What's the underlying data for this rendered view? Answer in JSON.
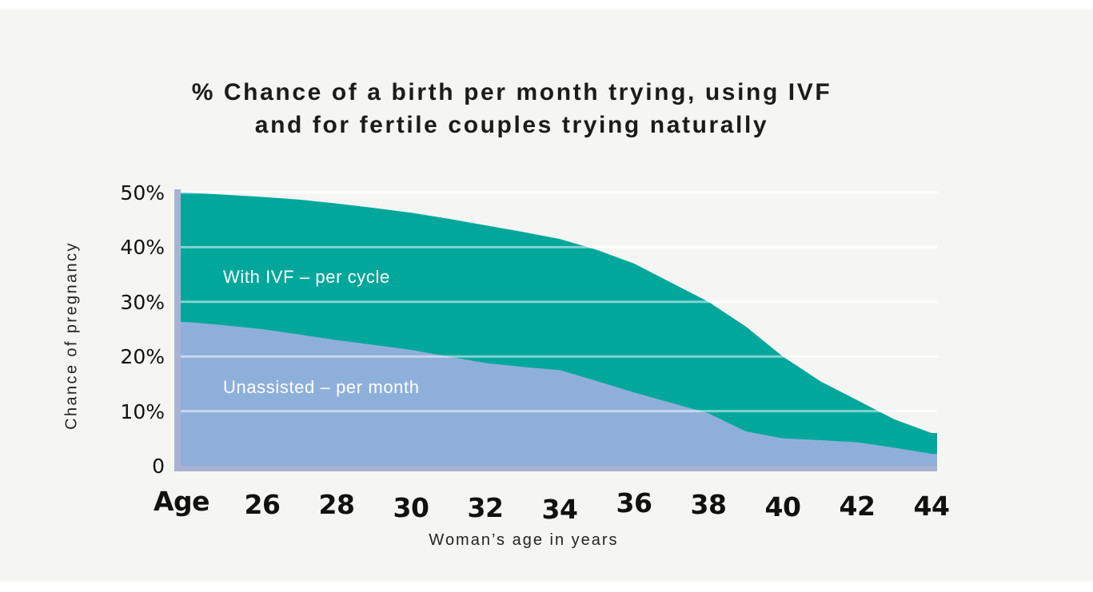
{
  "title": {
    "line1": "% Chance of a birth per month trying, using IVF",
    "line2": "and for fertile couples trying naturally"
  },
  "colors": {
    "background_card": "#F5F5F3",
    "page": "#FFFFFF",
    "axis": "#A9B2D2",
    "gridline": "#FFFFFF",
    "teal_series": "#02A79C",
    "blue_series": "#8FAFDB",
    "text_dark": "#1B1B19",
    "text_on_area": "#FFFFFF"
  },
  "chart_data": {
    "type": "area",
    "title": "% Chance of a birth per month trying, using IVF and for fertile couples trying naturally",
    "xlabel": "Woman’s age in years",
    "ylabel": "Chance of pregnancy",
    "x_first_tick_label": "Age",
    "x_ticks": [
      26,
      28,
      30,
      32,
      34,
      36,
      38,
      40,
      42,
      44
    ],
    "y_tick_labels": [
      "50%",
      "40%",
      "30%",
      "20%",
      "10%",
      "0"
    ],
    "y_tick_values": [
      50,
      40,
      30,
      20,
      10,
      0
    ],
    "xlim": [
      24,
      44
    ],
    "ylim": [
      0,
      50
    ],
    "grid": true,
    "legend_position": "labels-inside-areas",
    "x": [
      24,
      25,
      26,
      27,
      28,
      29,
      30,
      31,
      32,
      33,
      34,
      35,
      36,
      37,
      38,
      39,
      40,
      41,
      42,
      43,
      44
    ],
    "series": [
      {
        "name": "With IVF – per cycle",
        "color": "#02A79C",
        "values": [
          50,
          49.6,
          49.2,
          48.7,
          48,
          47.2,
          46.3,
          45.2,
          44,
          42.8,
          41.5,
          39.5,
          37,
          33.5,
          30,
          25.5,
          20,
          15.5,
          12,
          8.5,
          6
        ]
      },
      {
        "name": "Unassisted – per month",
        "color": "#8FAFDB",
        "values": [
          26.3,
          25.7,
          25,
          24,
          23,
          22.1,
          21.2,
          20,
          18.8,
          18.1,
          17.5,
          15.5,
          13.4,
          11.5,
          9.6,
          6.3,
          5,
          4.7,
          4.3,
          3.3,
          2.2
        ]
      }
    ]
  }
}
